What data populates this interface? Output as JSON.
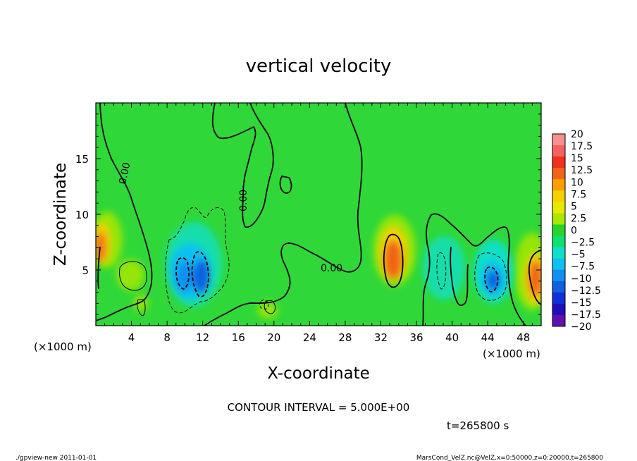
{
  "chart_data": {
    "type": "heatmap",
    "title": "vertical velocity",
    "xlabel": "X-coordinate",
    "ylabel": "Z-coordinate",
    "x_unit": "(×1000 m)",
    "y_unit": "(×1000 m)",
    "xlim": [
      0,
      50
    ],
    "ylim": [
      0,
      20
    ],
    "x_ticks": [
      "4",
      "8",
      "12",
      "16",
      "20",
      "24",
      "28",
      "32",
      "36",
      "40",
      "44",
      "48"
    ],
    "y_ticks": [
      "5",
      "10",
      "15"
    ],
    "colorbar": {
      "labels": [
        "20",
        "17.5",
        "15",
        "12.5",
        "10",
        "7.5",
        "5",
        "2.5",
        "0",
        "−2.5",
        "−5",
        "−7.5",
        "−10",
        "−12.5",
        "−15",
        "−17.5",
        "−20"
      ],
      "colors": [
        "#f79090",
        "#f76060",
        "#f0301e",
        "#f06418",
        "#f7a000",
        "#f7d000",
        "#e8e800",
        "#a8e800",
        "#28d428",
        "#10e070",
        "#10e0c8",
        "#10c0f0",
        "#1090f0",
        "#1060e0",
        "#1030d8",
        "#2010b8",
        "#6010b0"
      ]
    },
    "contour_labels": [
      "0.00",
      "0.00",
      "0.00"
    ],
    "annotations": {
      "contour_interval": "CONTOUR INTERVAL = 5.000E+00",
      "time": "t=265800 s"
    },
    "features": [
      {
        "kind": "updraft",
        "x": 1,
        "z": 6.5,
        "value": 12
      },
      {
        "kind": "updraft",
        "x": 3.5,
        "z": 4.5,
        "value": 5
      },
      {
        "kind": "downdraft",
        "x": 9.5,
        "z": 4.5,
        "value": -10
      },
      {
        "kind": "downdraft",
        "x": 11.5,
        "z": 4.5,
        "value": -11
      },
      {
        "kind": "updraft",
        "x": 33,
        "z": 6,
        "value": 14
      },
      {
        "kind": "downdraft",
        "x": 39,
        "z": 4.5,
        "value": -5
      },
      {
        "kind": "downdraft",
        "x": 44,
        "z": 4,
        "value": -10
      },
      {
        "kind": "updraft",
        "x": 49,
        "z": 4.5,
        "value": 13
      }
    ]
  },
  "footer": {
    "left": "./gpview-new   2011-01-01",
    "right": "MarsCond_VelZ.nc@VelZ,x=0:50000,z=0:20000,t=265800"
  }
}
